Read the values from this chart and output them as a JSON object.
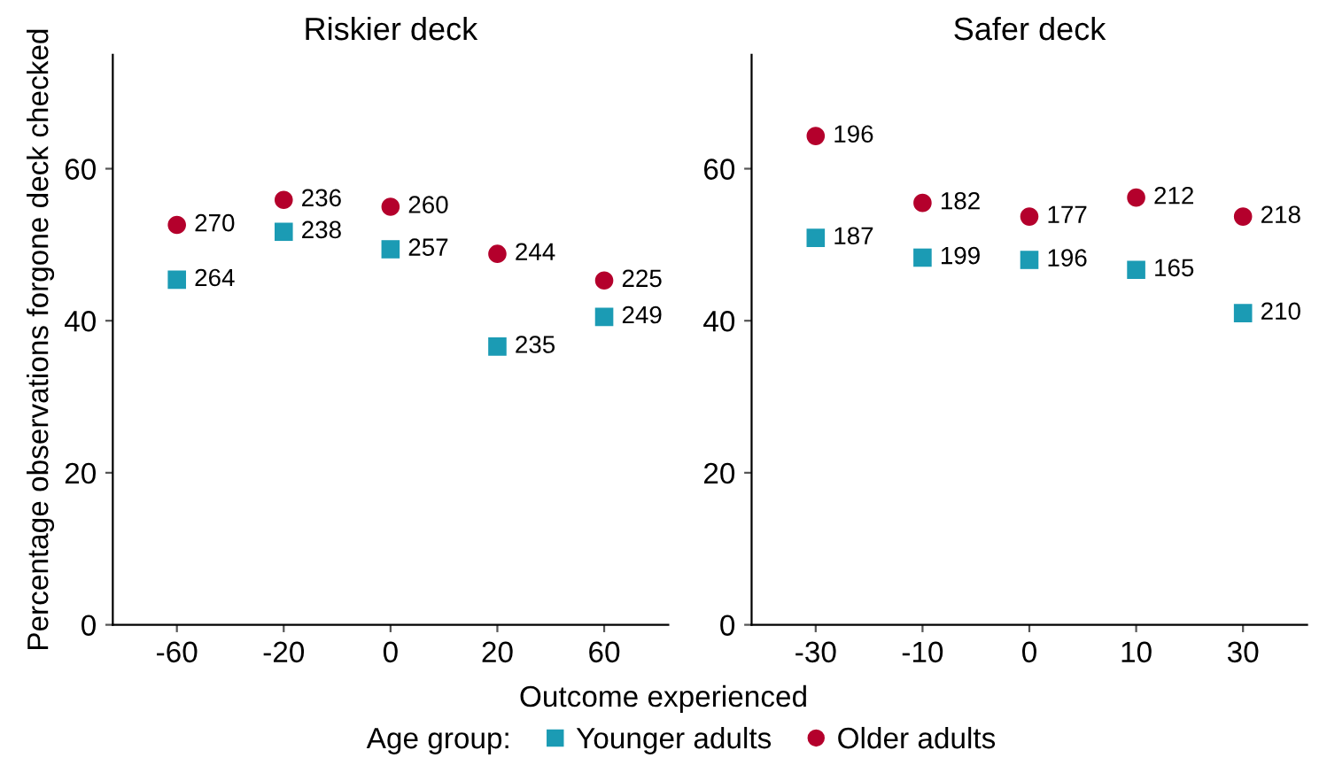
{
  "chart_data": [
    {
      "type": "scatter",
      "title": "Riskier deck",
      "ylabel": "Percentage observations forgone deck checked",
      "xlabel": "Outcome experienced",
      "legend": "bottom",
      "legend_title": "Age group:",
      "categories": [
        "-60",
        "-20",
        "0",
        "20",
        "60"
      ],
      "ylim": [
        0,
        75
      ],
      "yticks": [
        0,
        20,
        40,
        60
      ],
      "grid": false,
      "series": [
        {
          "name": "Younger adults",
          "color": "#1b9bb4",
          "marker": "square",
          "values": [
            45.4,
            51.7,
            49.4,
            36.6,
            40.5
          ]
        },
        {
          "name": "Older adults",
          "color": "#b4002c",
          "marker": "circle",
          "values": [
            52.6,
            55.9,
            55.0,
            48.8,
            45.3
          ]
        }
      ],
      "annotations": [
        {
          "text": "264",
          "x": "-60",
          "y": 45.4
        },
        {
          "text": "238",
          "x": "-20",
          "y": 51.7
        },
        {
          "text": "257",
          "x": "0",
          "y": 49.4
        },
        {
          "text": "235",
          "x": "20",
          "y": 36.6
        },
        {
          "text": "249",
          "x": "60",
          "y": 40.5
        },
        {
          "text": "270",
          "x": "-60",
          "y": 52.6
        },
        {
          "text": "236",
          "x": "-20",
          "y": 55.9
        },
        {
          "text": "260",
          "x": "0",
          "y": 55.0
        },
        {
          "text": "244",
          "x": "20",
          "y": 48.8
        },
        {
          "text": "225",
          "x": "60",
          "y": 45.3
        }
      ]
    },
    {
      "type": "scatter",
      "title": "Safer deck",
      "categories": [
        "-30",
        "-10",
        "0",
        "10",
        "30"
      ],
      "ylim": [
        0,
        75
      ],
      "yticks": [
        0,
        20,
        40,
        60
      ],
      "grid": false,
      "series": [
        {
          "color": "#1b9bb4",
          "marker": "square",
          "values": [
            50.9,
            48.3,
            48.0,
            46.7,
            41.0
          ]
        },
        {
          "color": "#b4002c",
          "marker": "circle",
          "values": [
            64.3,
            55.5,
            53.7,
            56.2,
            53.7
          ]
        }
      ],
      "annotations": [
        {
          "text": "187",
          "x": "-30",
          "y": 50.9
        },
        {
          "text": "199",
          "x": "-10",
          "y": 48.3
        },
        {
          "text": "196",
          "x": "0",
          "y": 48.0
        },
        {
          "text": "165",
          "x": "10",
          "y": 46.7
        },
        {
          "text": "210",
          "x": "30",
          "y": 41.0
        },
        {
          "text": "196",
          "x": "-30",
          "y": 64.3
        },
        {
          "text": "182",
          "x": "-10",
          "y": 55.5
        },
        {
          "text": "177",
          "x": "0",
          "y": 53.7
        },
        {
          "text": "212",
          "x": "10",
          "y": 56.2
        },
        {
          "text": "218",
          "x": "30",
          "y": 53.7
        }
      ]
    }
  ]
}
